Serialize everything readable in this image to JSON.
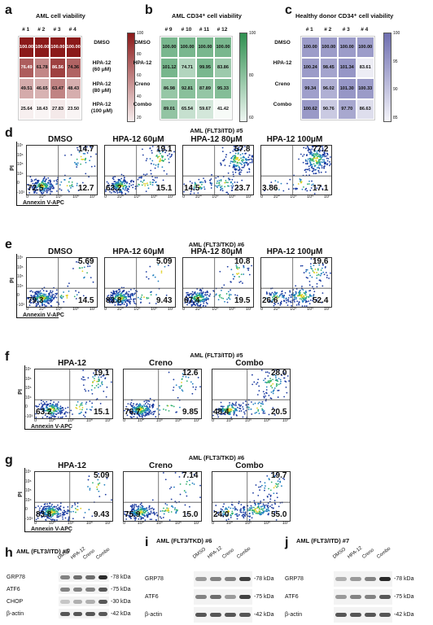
{
  "panels": {
    "a": "a",
    "b": "b",
    "c": "c",
    "d": "d",
    "e": "e",
    "f": "f",
    "g": "g",
    "h": "h",
    "i": "i",
    "j": "j"
  },
  "heatmaps": [
    {
      "id": "a",
      "title": "AML  cell viability",
      "cols": [
        "# 1",
        "# 2",
        "# 3",
        "# 4"
      ],
      "rows": [
        "DMSO",
        "HPA-12\n(60 μM)",
        "HPA-12\n(80 μM)",
        "HPA-12\n(100 μM)"
      ],
      "values": [
        [
          "100.00",
          "100.00",
          "100.00",
          "100.00"
        ],
        [
          "76.49",
          "61.78",
          "86.56",
          "74.36"
        ],
        [
          "49.51",
          "46.65",
          "63.47",
          "48.43"
        ],
        [
          "25.64",
          "18.43",
          "27.83",
          "23.50"
        ]
      ],
      "ticks": [
        "100",
        "80",
        "60",
        "40",
        "20"
      ],
      "min": 20,
      "max": 100,
      "color": "#8b1a1a"
    },
    {
      "id": "b",
      "title": "AML  CD34⁺ cell viability",
      "cols": [
        "# 9",
        "# 10",
        "# 11",
        "# 12"
      ],
      "rows": [
        "DMSO",
        "HPA-12",
        "Creno",
        "Combo"
      ],
      "values": [
        [
          "100.00",
          "100.00",
          "100.00",
          "100.00"
        ],
        [
          "101.12",
          "74.71",
          "99.95",
          "83.86"
        ],
        [
          "86.98",
          "92.81",
          "87.89",
          "95.33"
        ],
        [
          "89.01",
          "65.54",
          "59.67",
          "41.42"
        ]
      ],
      "ticks": [
        "100",
        "80",
        "60"
      ],
      "min": 40,
      "max": 110,
      "color": "#2f8f4f"
    },
    {
      "id": "c",
      "title": "Healthy donor  CD34⁺ cell viability",
      "cols": [
        "# 1",
        "# 2",
        "# 3",
        "# 4"
      ],
      "rows": [
        "DMSO",
        "HPA-12",
        "Creno",
        "Combo"
      ],
      "values": [
        [
          "100.00",
          "100.00",
          "100.00",
          "100.00"
        ],
        [
          "100.24",
          "98.45",
          "101.34",
          "83.61"
        ],
        [
          "99.34",
          "96.02",
          "101.30",
          "100.33"
        ],
        [
          "100.62",
          "90.76",
          "97.70",
          "86.63"
        ]
      ],
      "ticks": [
        "100",
        "95",
        "90",
        "85"
      ],
      "min": 80,
      "max": 102,
      "color": "#6e6eb0"
    }
  ],
  "flow": [
    {
      "id": "d",
      "title": "AML (FLT3/ITD) #5",
      "plots": [
        {
          "label": "DMSO",
          "ur": "14.7",
          "ll": "72.5",
          "lr": "12.7"
        },
        {
          "label": "HPA-12 60μM",
          "ur": "19.1",
          "ll": "63.2",
          "lr": "15.1"
        },
        {
          "label": "HPA-12 80μM",
          "ur": "57.8",
          "ll": "14.5",
          "lr": "23.7"
        },
        {
          "label": "HPA-12 100μM",
          "ur": "77.2",
          "ll": "3.86",
          "lr": "17.1"
        }
      ]
    },
    {
      "id": "e",
      "title": "AML (FLT3/TKD) #6",
      "plots": [
        {
          "label": "DMSO",
          "ur": "5.69",
          "ll": "79.3",
          "lr": "14.5"
        },
        {
          "label": "HPA-12 60μM",
          "ur": "5.09",
          "ll": "83.8",
          "lr": "9.43"
        },
        {
          "label": "HPA-12 80μM",
          "ur": "10.8",
          "ll": "67.4",
          "lr": "19.5"
        },
        {
          "label": "HPA-12 100μM",
          "ur": "19.6",
          "ll": "26.6",
          "lr": "52.4"
        }
      ]
    },
    {
      "id": "f",
      "title": "AML (FLT3/ITD) #5",
      "plots": [
        {
          "label": "HPA-12",
          "ur": "19.1",
          "ll": "63.2",
          "lr": "15.1"
        },
        {
          "label": "Creno",
          "ur": "12.6",
          "ll": "76.7",
          "lr": "9.85"
        },
        {
          "label": "Combo",
          "ur": "28.0",
          "ll": "48.4",
          "lr": "20.5"
        }
      ]
    },
    {
      "id": "g",
      "title": "AML (FLT3/TKD) #6",
      "plots": [
        {
          "label": "HPA-12",
          "ur": "5.09",
          "ll": "83.8",
          "lr": "9.43"
        },
        {
          "label": "Creno",
          "ur": "7.14",
          "ll": "75.9",
          "lr": "15.0"
        },
        {
          "label": "Combo",
          "ur": "19.7",
          "ll": "24.0",
          "lr": "55.0"
        }
      ]
    }
  ],
  "axis": {
    "x": "Annexin V-APC",
    "y": "PI",
    "xt": [
      "0",
      "10⁴",
      "10⁵",
      "10⁶",
      "10⁷"
    ],
    "yt": [
      "10⁷",
      "10⁶",
      "10⁵",
      "10⁴",
      "0",
      "-10³"
    ]
  },
  "blots": [
    {
      "id": "h",
      "title": "AML (FLT3/ITD) #5",
      "lanes": [
        "DMSO",
        "HPA-12",
        "Creno",
        "Combo"
      ],
      "proteins": [
        "GRP78",
        "ATF6",
        "CHOP",
        "β-actin"
      ],
      "kda": [
        "-78 kDa",
        "-75 kDa",
        "-30 kDa",
        "-42 kDa"
      ]
    },
    {
      "id": "i",
      "title": "AML (FLT3/TKD) #6",
      "lanes": [
        "DMSO",
        "HPA-12",
        "Creno",
        "Combo"
      ],
      "proteins": [
        "GRP78",
        "ATF6",
        "β-actin"
      ],
      "kda": [
        "-78 kDa",
        "-75 kDa",
        "-42 kDa"
      ]
    },
    {
      "id": "j",
      "title": "AML (FLT3/ITD) #7",
      "lanes": [
        "DMSO",
        "HPA-12",
        "Creno",
        "Combo"
      ],
      "proteins": [
        "GRP78",
        "ATF6",
        "β-actin"
      ],
      "kda": [
        "-78 kDa",
        "-75 kDa",
        "-42 kDa"
      ]
    }
  ]
}
